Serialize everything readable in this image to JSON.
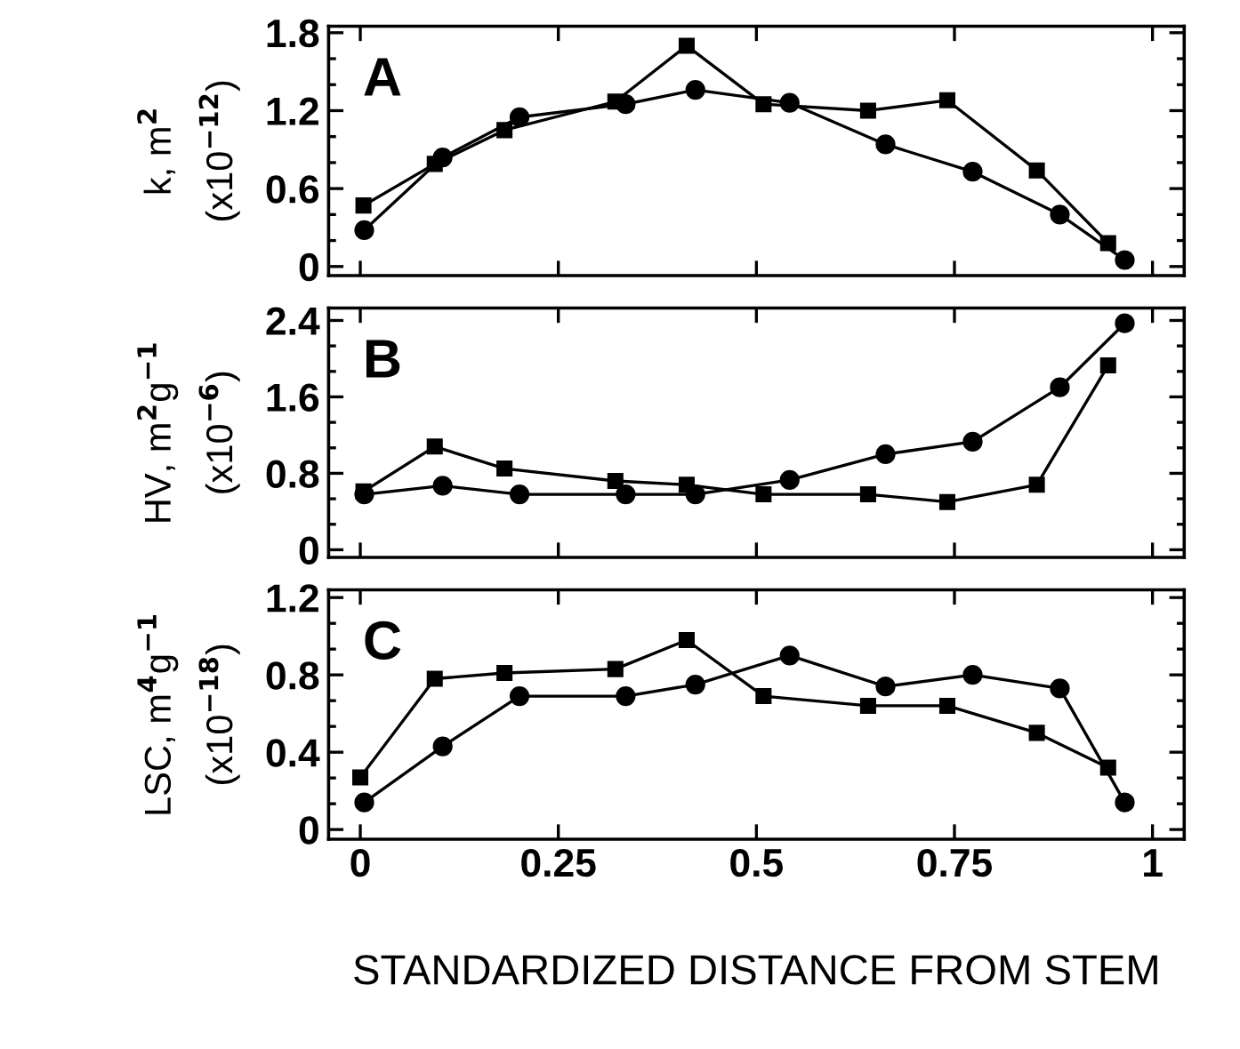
{
  "chart_data": [
    {
      "type": "line",
      "ylabel": "k, m$^{2}$\n(x10$^{−12}$)",
      "annotations": [
        "A"
      ],
      "xlim": [
        -0.04,
        1.04
      ],
      "xticks": [
        0,
        0.25,
        0.5,
        0.75,
        1
      ],
      "ylim": [
        -0.07,
        1.85
      ],
      "yticks": [
        0,
        0.6,
        1.2,
        1.8
      ],
      "tick_labels": "y",
      "grid": false,
      "legend": false,
      "series": [
        {
          "color": "#000000",
          "marker": "square",
          "x": [
            0.004,
            0.094,
            0.182,
            0.322,
            0.412,
            0.509,
            0.641,
            0.741,
            0.854,
            0.944
          ],
          "values": [
            0.47,
            0.79,
            1.05,
            1.27,
            1.7,
            1.25,
            1.2,
            1.28,
            0.74,
            0.18
          ]
        },
        {
          "color": "#000000",
          "marker": "circle",
          "x": [
            0.005,
            0.104,
            0.201,
            0.335,
            0.423,
            0.542,
            0.663,
            0.773,
            0.883,
            0.965
          ],
          "values": [
            0.28,
            0.84,
            1.15,
            1.25,
            1.36,
            1.26,
            0.94,
            0.73,
            0.4,
            0.05
          ]
        }
      ]
    },
    {
      "type": "line",
      "ylabel": "HV, m$^{2}$g$^{−1}$\n(x10$^{−6}$)",
      "annotations": [
        "B"
      ],
      "xlim": [
        -0.04,
        1.04
      ],
      "xticks": [
        0,
        0.25,
        0.5,
        0.75,
        1
      ],
      "ylim": [
        -0.08,
        2.53
      ],
      "yticks": [
        0,
        0.8,
        1.6,
        2.4
      ],
      "tick_labels": "y",
      "grid": false,
      "legend": false,
      "series": [
        {
          "color": "#000000",
          "marker": "square",
          "x": [
            0.004,
            0.094,
            0.182,
            0.322,
            0.412,
            0.509,
            0.641,
            0.741,
            0.854,
            0.944
          ],
          "values": [
            0.61,
            1.08,
            0.85,
            0.72,
            0.68,
            0.58,
            0.58,
            0.5,
            0.68,
            1.93
          ]
        },
        {
          "color": "#000000",
          "marker": "circle",
          "x": [
            0.005,
            0.104,
            0.201,
            0.335,
            0.423,
            0.542,
            0.663,
            0.773,
            0.883,
            0.965
          ],
          "values": [
            0.58,
            0.67,
            0.58,
            0.58,
            0.58,
            0.73,
            1.0,
            1.13,
            1.7,
            2.37
          ]
        }
      ]
    },
    {
      "type": "line",
      "ylabel": "LSC, m$^{4}$g$^{−1}$\n(x10$^{−18}$)",
      "xlabel": "STANDARDIZED DISTANCE FROM STEM",
      "annotations": [
        "C"
      ],
      "xlim": [
        -0.04,
        1.04
      ],
      "xticks": [
        0,
        0.25,
        0.5,
        0.75,
        1
      ],
      "ylim": [
        -0.05,
        1.24
      ],
      "yticks": [
        0,
        0.4,
        0.8,
        1.2
      ],
      "grid": false,
      "legend": false,
      "series": [
        {
          "color": "#000000",
          "marker": "square",
          "x": [
            0.0,
            0.094,
            0.182,
            0.322,
            0.412,
            0.509,
            0.641,
            0.741,
            0.854,
            0.944
          ],
          "values": [
            0.27,
            0.78,
            0.81,
            0.83,
            0.98,
            0.69,
            0.64,
            0.64,
            0.5,
            0.32
          ]
        },
        {
          "color": "#000000",
          "marker": "circle",
          "x": [
            0.005,
            0.104,
            0.201,
            0.335,
            0.423,
            0.542,
            0.663,
            0.773,
            0.883,
            0.965
          ],
          "values": [
            0.14,
            0.43,
            0.69,
            0.69,
            0.75,
            0.9,
            0.74,
            0.8,
            0.73,
            0.14
          ]
        }
      ]
    }
  ]
}
